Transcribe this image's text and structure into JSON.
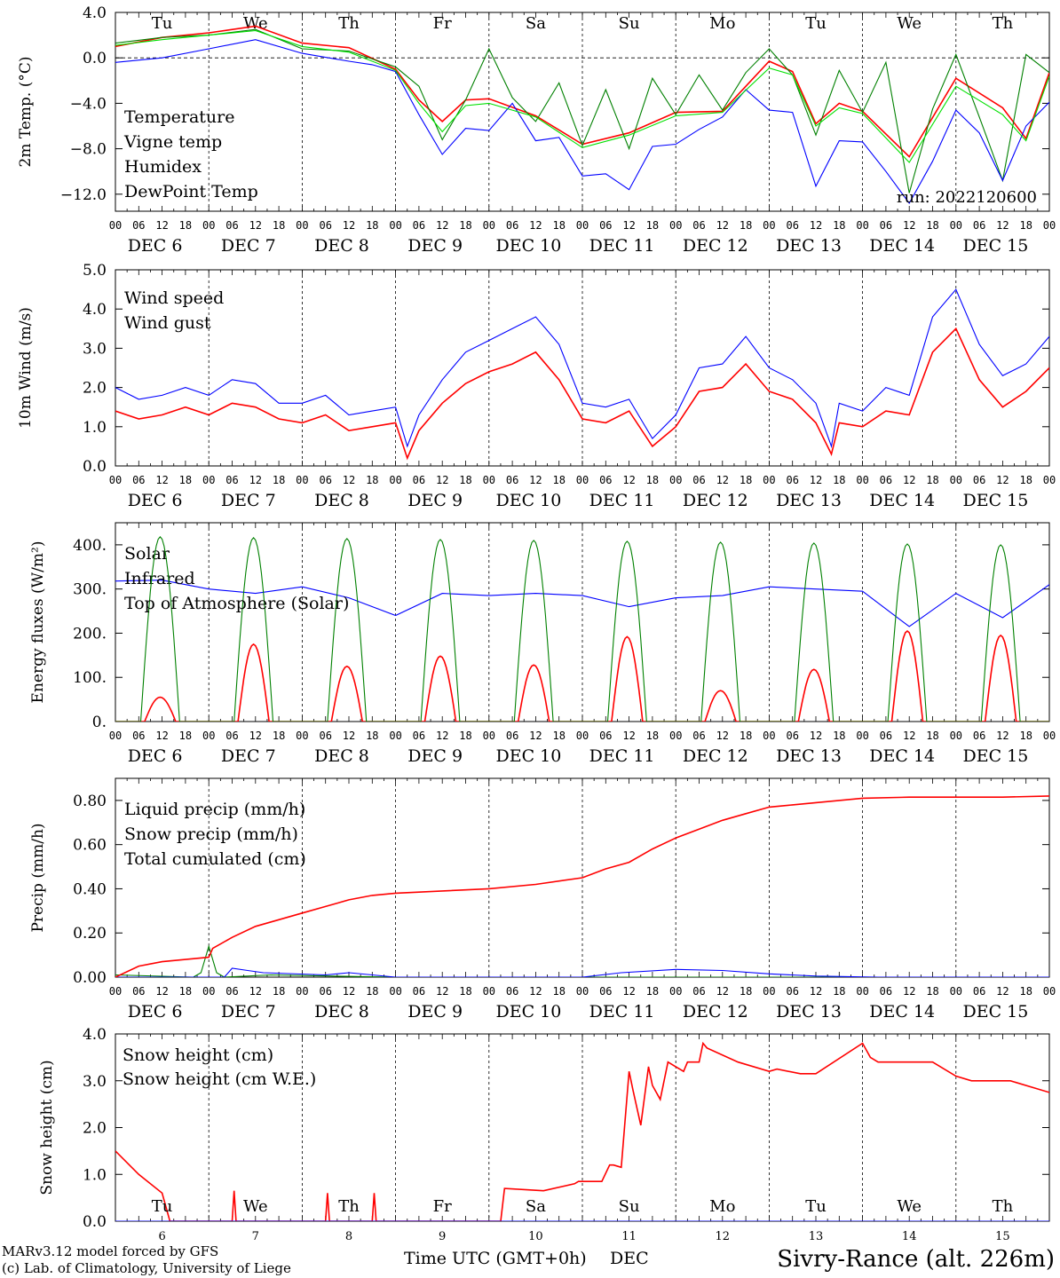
{
  "days": [
    "DEC 6",
    "DEC 7",
    "DEC 8",
    "DEC 9",
    "DEC 10",
    "DEC 11",
    "DEC 12",
    "DEC 13",
    "DEC 14",
    "DEC 15"
  ],
  "weekdays": [
    "Tu",
    "We",
    "Th",
    "Fr",
    "Sa",
    "Su",
    "Mo",
    "Tu",
    "We",
    "Th"
  ],
  "weekday_colors": [
    "#000000",
    "#000000",
    "#000000",
    "#000000",
    "#ff0000",
    "#ff0000",
    "#000000",
    "#000000",
    "#000000",
    "#000000"
  ],
  "hour_ticks": [
    "00",
    "06",
    "12",
    "18"
  ],
  "hour_end": "00",
  "bottom_day_numbers": [
    "6",
    "7",
    "8",
    "9",
    "10",
    "11",
    "12",
    "13",
    "14",
    "15"
  ],
  "footer": {
    "model": "MARv3.12 model forced by GFS",
    "lab": "(c) Lab. of Climatology, University of Liege",
    "xlabel_prefix": "Time UTC (GMT+0h)",
    "xlabel_suffix": "DEC",
    "station": "Sivry-Rance (alt. 226m)"
  },
  "chart_data": [
    {
      "type": "line",
      "ylabel": "2m Temp. (°C)",
      "ylim": [
        -13.5,
        4.0
      ],
      "yticks": [
        "4.0",
        "0.0",
        "−4.0",
        "−8.0",
        "−12.0"
      ],
      "ytick_values": [
        4,
        0,
        -4,
        -8,
        -12
      ],
      "zero_line": 0,
      "note": "run: 2022120600",
      "series": [
        {
          "name": "Temperature",
          "color": "#ff0000",
          "x_hours": [
            0,
            12,
            24,
            36,
            48,
            60,
            72,
            78,
            84,
            90,
            96,
            108,
            120,
            132,
            144,
            156,
            168,
            174,
            180,
            186,
            192,
            204,
            216,
            228,
            234,
            240
          ],
          "values": [
            1.0,
            1.8,
            2.2,
            2.8,
            1.3,
            0.9,
            -1.0,
            -3.7,
            -5.6,
            -3.7,
            -3.6,
            -5.1,
            -7.6,
            -6.6,
            -4.8,
            -4.7,
            -0.3,
            -1.2,
            -5.8,
            -4.0,
            -4.7,
            -8.7,
            -1.8,
            -4.4,
            -7.1,
            -1.3
          ]
        },
        {
          "name": "Vigne temp",
          "color": "#008000",
          "x_hours": [
            0,
            12,
            24,
            36,
            48,
            60,
            72,
            78,
            84,
            90,
            96,
            102,
            108,
            114,
            120,
            126,
            132,
            138,
            144,
            150,
            156,
            162,
            168,
            174,
            180,
            186,
            192,
            198,
            204,
            210,
            216,
            222,
            228,
            234,
            240
          ],
          "values": [
            1.3,
            1.8,
            2.0,
            2.5,
            0.8,
            0.6,
            -0.8,
            -2.5,
            -7.2,
            -3.7,
            0.8,
            -3.5,
            -5.6,
            -2.2,
            -7.7,
            -2.8,
            -8.0,
            -1.8,
            -5.0,
            -1.5,
            -4.6,
            -1.3,
            0.8,
            -1.5,
            -6.8,
            -1.1,
            -4.8,
            -0.4,
            -11.9,
            -4.5,
            0.3,
            -5.2,
            -10.8,
            0.3,
            -1.3
          ]
        },
        {
          "name": "Humidex",
          "color": "#0000ff",
          "x_hours": [
            0,
            12,
            24,
            36,
            48,
            60,
            66,
            72,
            78,
            84,
            90,
            96,
            102,
            108,
            114,
            120,
            126,
            132,
            138,
            144,
            150,
            156,
            162,
            168,
            174,
            180,
            186,
            192,
            198,
            204,
            210,
            216,
            222,
            228,
            234,
            240
          ],
          "values": [
            -0.4,
            0.0,
            0.8,
            1.6,
            0.4,
            -0.3,
            -0.6,
            -1.2,
            -5.0,
            -8.5,
            -6.2,
            -6.4,
            -4.0,
            -7.3,
            -7.0,
            -10.4,
            -10.2,
            -11.6,
            -7.8,
            -7.6,
            -6.3,
            -5.2,
            -2.8,
            -4.6,
            -4.8,
            -11.3,
            -7.3,
            -7.4,
            -10.0,
            -12.8,
            -9.1,
            -4.6,
            -6.6,
            -10.8,
            -6.0,
            -3.9
          ]
        },
        {
          "name": "DewPoint Temp",
          "color": "#00e000",
          "x_hours": [
            0,
            12,
            24,
            36,
            48,
            60,
            72,
            78,
            84,
            90,
            96,
            108,
            120,
            132,
            144,
            156,
            168,
            174,
            180,
            186,
            192,
            204,
            216,
            228,
            234,
            240
          ],
          "values": [
            1.1,
            1.6,
            2.0,
            2.4,
            1.0,
            0.5,
            -1.1,
            -4.0,
            -6.5,
            -4.2,
            -4.0,
            -5.2,
            -7.9,
            -6.8,
            -5.1,
            -4.8,
            -0.9,
            -1.5,
            -6.0,
            -4.4,
            -4.9,
            -9.2,
            -2.5,
            -5.0,
            -7.3,
            -1.6
          ]
        }
      ]
    },
    {
      "type": "line",
      "ylabel": "10m Wind (m/s)",
      "ylim": [
        0.0,
        5.0
      ],
      "yticks": [
        "5.0",
        "4.0",
        "3.0",
        "2.0",
        "1.0",
        "0.0"
      ],
      "ytick_values": [
        5,
        4,
        3,
        2,
        1,
        0
      ],
      "series": [
        {
          "name": "Wind speed",
          "color": "#ff0000",
          "x_hours": [
            0,
            6,
            12,
            18,
            24,
            30,
            36,
            42,
            48,
            54,
            60,
            66,
            72,
            75,
            78,
            84,
            90,
            96,
            102,
            108,
            114,
            120,
            126,
            132,
            138,
            144,
            150,
            156,
            162,
            168,
            174,
            180,
            184,
            186,
            192,
            198,
            204,
            210,
            216,
            222,
            228,
            234,
            240
          ],
          "values": [
            1.4,
            1.2,
            1.3,
            1.5,
            1.3,
            1.6,
            1.5,
            1.2,
            1.1,
            1.3,
            0.9,
            1.0,
            1.1,
            0.2,
            0.9,
            1.6,
            2.1,
            2.4,
            2.6,
            2.9,
            2.2,
            1.2,
            1.1,
            1.4,
            0.5,
            1.0,
            1.9,
            2.0,
            2.6,
            1.9,
            1.7,
            1.1,
            0.3,
            1.1,
            1.0,
            1.4,
            1.3,
            2.9,
            3.5,
            2.2,
            1.5,
            1.9,
            2.5
          ]
        },
        {
          "name": "Wind gust",
          "color": "#0000ff",
          "x_hours": [
            0,
            6,
            12,
            18,
            24,
            30,
            36,
            42,
            48,
            54,
            60,
            66,
            72,
            75,
            78,
            84,
            90,
            96,
            102,
            108,
            114,
            120,
            126,
            132,
            138,
            144,
            150,
            156,
            162,
            168,
            174,
            180,
            184,
            186,
            192,
            198,
            204,
            210,
            216,
            222,
            228,
            234,
            240
          ],
          "values": [
            2.0,
            1.7,
            1.8,
            2.0,
            1.8,
            2.2,
            2.1,
            1.6,
            1.6,
            1.8,
            1.3,
            1.4,
            1.5,
            0.5,
            1.3,
            2.2,
            2.9,
            3.2,
            3.5,
            3.8,
            3.1,
            1.6,
            1.5,
            1.7,
            0.7,
            1.3,
            2.5,
            2.6,
            3.3,
            2.5,
            2.2,
            1.6,
            0.5,
            1.6,
            1.4,
            2.0,
            1.8,
            3.8,
            4.5,
            3.1,
            2.3,
            2.6,
            3.3
          ]
        }
      ]
    },
    {
      "type": "line",
      "ylabel": "Energy fluxes (W/m²)",
      "ylim": [
        0,
        450
      ],
      "yticks": [
        "400.",
        "300.",
        "200.",
        "100.",
        "0."
      ],
      "ytick_values": [
        400,
        300,
        200,
        100,
        0
      ],
      "series": [
        {
          "name": "Solar",
          "color": "#ff0000",
          "daily_peak": [
            55,
            175,
            125,
            148,
            128,
            192,
            70,
            118,
            205,
            195
          ],
          "x_hours": [],
          "values": []
        },
        {
          "name": "Infrared",
          "color": "#0000ff",
          "x_hours": [
            0,
            12,
            24,
            36,
            48,
            60,
            72,
            84,
            96,
            108,
            120,
            132,
            144,
            156,
            168,
            180,
            192,
            204,
            216,
            228,
            240
          ],
          "values": [
            318,
            320,
            300,
            290,
            305,
            280,
            240,
            290,
            285,
            290,
            285,
            260,
            280,
            285,
            305,
            300,
            295,
            215,
            290,
            235,
            310
          ]
        },
        {
          "name": "Top of Atmosphere (Solar)",
          "color": "#008000",
          "daily_peak": [
            418,
            416,
            414,
            412,
            410,
            408,
            406,
            404,
            402,
            400
          ],
          "x_hours": [],
          "values": []
        }
      ]
    },
    {
      "type": "line",
      "ylabel": "Precip (mm/h)",
      "ylim": [
        0.0,
        0.9
      ],
      "yticks": [
        "0.80",
        "0.60",
        "0.40",
        "0.20",
        "0.00"
      ],
      "ytick_values": [
        0.8,
        0.6,
        0.4,
        0.2,
        0.0
      ],
      "series": [
        {
          "name": "Liquid precip (mm/h)",
          "color": "#008000",
          "x_hours": [
            0,
            20,
            22,
            24,
            26,
            28,
            40,
            56,
            72,
            120,
            150,
            240
          ],
          "values": [
            0.01,
            0.0,
            0.02,
            0.14,
            0.02,
            0.0,
            0.01,
            0.005,
            0.0,
            0.0,
            0.0,
            0.0
          ]
        },
        {
          "name": "Snow precip (mm/h)",
          "color": "#0000ff",
          "x_hours": [
            0,
            28,
            30,
            34,
            38,
            54,
            60,
            66,
            72,
            96,
            120,
            130,
            144,
            156,
            168,
            180,
            196,
            240
          ],
          "values": [
            0.0,
            0.0,
            0.04,
            0.03,
            0.02,
            0.01,
            0.02,
            0.01,
            0.0,
            0.0,
            0.0,
            0.02,
            0.035,
            0.03,
            0.015,
            0.005,
            0.0,
            0.0
          ]
        },
        {
          "name": "Total cumulated (cm)",
          "color": "#ff0000",
          "x_hours": [
            0,
            6,
            12,
            18,
            24,
            25,
            30,
            36,
            42,
            48,
            54,
            60,
            66,
            72,
            84,
            96,
            108,
            120,
            126,
            132,
            138,
            144,
            150,
            156,
            162,
            168,
            174,
            180,
            192,
            204,
            216,
            228,
            240
          ],
          "values": [
            0.0,
            0.05,
            0.07,
            0.08,
            0.09,
            0.13,
            0.18,
            0.23,
            0.26,
            0.29,
            0.32,
            0.35,
            0.37,
            0.38,
            0.39,
            0.4,
            0.42,
            0.45,
            0.49,
            0.52,
            0.58,
            0.63,
            0.67,
            0.71,
            0.74,
            0.77,
            0.78,
            0.79,
            0.81,
            0.815,
            0.815,
            0.815,
            0.82
          ]
        }
      ]
    },
    {
      "type": "line",
      "ylabel": "Snow height (cm)",
      "ylim": [
        0.0,
        4.0
      ],
      "yticks": [
        "4.0",
        "3.0",
        "2.0",
        "1.0",
        "0.0"
      ],
      "ytick_values": [
        4,
        3,
        2,
        1,
        0
      ],
      "series": [
        {
          "name": "Snow height (cm)",
          "color": "#ff0000",
          "x_hours": [
            0,
            6,
            12,
            14,
            16,
            30,
            30.5,
            31,
            54,
            54.5,
            55,
            66,
            66.5,
            67,
            99,
            100,
            110,
            118,
            119,
            125,
            127,
            128,
            130,
            132,
            133,
            135,
            137,
            138,
            140,
            142,
            146,
            147,
            150,
            151,
            152,
            160,
            168,
            170,
            176,
            180,
            192,
            194,
            196,
            200,
            210,
            216,
            220,
            230,
            240
          ],
          "values": [
            1.5,
            1.0,
            0.6,
            0.0,
            0.0,
            0.0,
            0.65,
            0.0,
            0.0,
            0.6,
            0.0,
            0.0,
            0.6,
            0.0,
            0.0,
            0.7,
            0.65,
            0.8,
            0.85,
            0.85,
            1.2,
            1.2,
            1.15,
            3.2,
            2.8,
            2.05,
            3.3,
            2.9,
            2.6,
            3.4,
            3.2,
            3.4,
            3.4,
            3.8,
            3.7,
            3.4,
            3.2,
            3.25,
            3.15,
            3.15,
            3.8,
            3.5,
            3.4,
            3.4,
            3.4,
            3.1,
            3.0,
            3.0,
            2.75
          ]
        },
        {
          "name": "Snow height (cm W.E.)",
          "color": "#0000ff",
          "x_hours": [
            0,
            240
          ],
          "values": [
            0.0,
            0.0
          ]
        }
      ]
    }
  ]
}
